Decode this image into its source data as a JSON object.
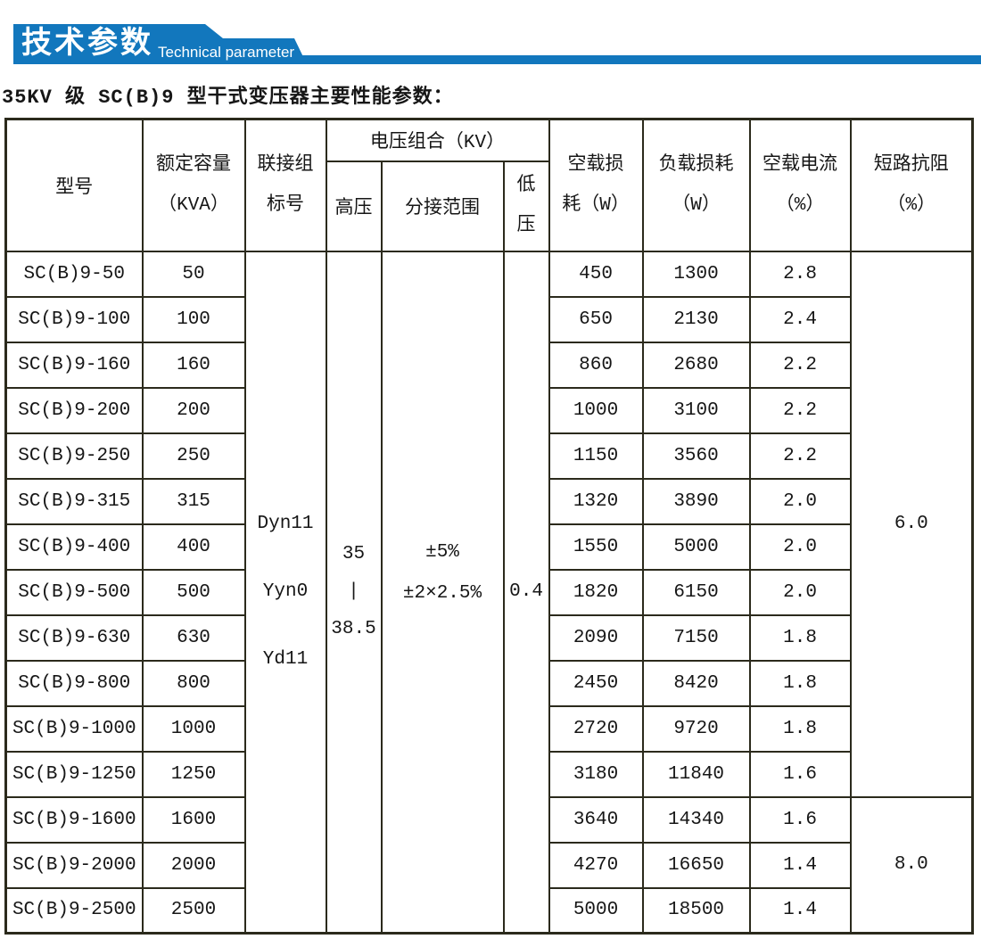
{
  "banner": {
    "title_cn": "技术参数",
    "title_en": "Technical parameter",
    "color": "#1277bd"
  },
  "caption": "35KV 级 SC(B)9 型干式变压器主要性能参数：",
  "table": {
    "border_color": "#2b2a1c",
    "headers": {
      "model": "型号",
      "capacity": "额定容量\n（KVA）",
      "vector_group": "联接组\n标号",
      "voltage_combo": "电压组合（KV）",
      "hv": "高压",
      "tap_range": "分接范围",
      "lv": "低\n压",
      "no_load_loss": "空载损\n耗（W）",
      "load_loss": "负载损耗\n（W）",
      "no_load_current": "空载电流\n（%）",
      "impedance": "短路抗阻\n（%）"
    },
    "merged": {
      "vector_group_values": [
        "Dyn11",
        "Yyn0",
        "Yd11"
      ],
      "hv_values": [
        "35",
        "|",
        "38.5"
      ],
      "tap_range_values": [
        "±5%",
        "±2×2.5%"
      ],
      "lv_value": "0.4",
      "impedance_groups": [
        {
          "value": "6.0",
          "row_span": 12
        },
        {
          "value": "8.0",
          "row_span": 3
        }
      ]
    },
    "rows": [
      {
        "model": "SC(B)9-50",
        "capacity": "50",
        "no_load_loss": "450",
        "load_loss": "1300",
        "no_load_current": "2.8"
      },
      {
        "model": "SC(B)9-100",
        "capacity": "100",
        "no_load_loss": "650",
        "load_loss": "2130",
        "no_load_current": "2.4"
      },
      {
        "model": "SC(B)9-160",
        "capacity": "160",
        "no_load_loss": "860",
        "load_loss": "2680",
        "no_load_current": "2.2"
      },
      {
        "model": "SC(B)9-200",
        "capacity": "200",
        "no_load_loss": "1000",
        "load_loss": "3100",
        "no_load_current": "2.2"
      },
      {
        "model": "SC(B)9-250",
        "capacity": "250",
        "no_load_loss": "1150",
        "load_loss": "3560",
        "no_load_current": "2.2"
      },
      {
        "model": "SC(B)9-315",
        "capacity": "315",
        "no_load_loss": "1320",
        "load_loss": "3890",
        "no_load_current": "2.0"
      },
      {
        "model": "SC(B)9-400",
        "capacity": "400",
        "no_load_loss": "1550",
        "load_loss": "5000",
        "no_load_current": "2.0"
      },
      {
        "model": "SC(B)9-500",
        "capacity": "500",
        "no_load_loss": "1820",
        "load_loss": "6150",
        "no_load_current": "2.0"
      },
      {
        "model": "SC(B)9-630",
        "capacity": "630",
        "no_load_loss": "2090",
        "load_loss": "7150",
        "no_load_current": "1.8"
      },
      {
        "model": "SC(B)9-800",
        "capacity": "800",
        "no_load_loss": "2450",
        "load_loss": "8420",
        "no_load_current": "1.8"
      },
      {
        "model": "SC(B)9-1000",
        "capacity": "1000",
        "no_load_loss": "2720",
        "load_loss": "9720",
        "no_load_current": "1.8"
      },
      {
        "model": "SC(B)9-1250",
        "capacity": "1250",
        "no_load_loss": "3180",
        "load_loss": "11840",
        "no_load_current": "1.6"
      },
      {
        "model": "SC(B)9-1600",
        "capacity": "1600",
        "no_load_loss": "3640",
        "load_loss": "14340",
        "no_load_current": "1.6"
      },
      {
        "model": "SC(B)9-2000",
        "capacity": "2000",
        "no_load_loss": "4270",
        "load_loss": "16650",
        "no_load_current": "1.4"
      },
      {
        "model": "SC(B)9-2500",
        "capacity": "2500",
        "no_load_loss": "5000",
        "load_loss": "18500",
        "no_load_current": "1.4"
      }
    ]
  }
}
